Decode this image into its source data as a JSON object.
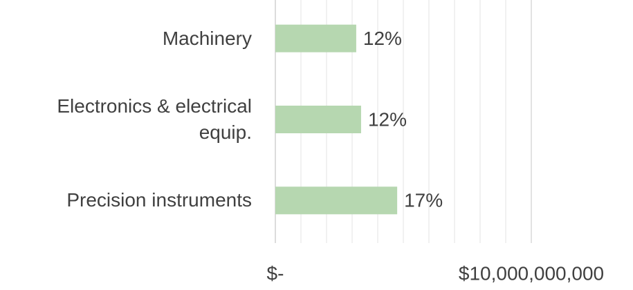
{
  "chart_data": {
    "type": "barh",
    "categories": [
      "Machinery",
      "Electronics & electrical equip.",
      "Precision instruments"
    ],
    "values": [
      3160000000,
      3350000000,
      4760000000
    ],
    "data_labels": [
      "12%",
      "12%",
      "17%"
    ],
    "color": "#b6d7b0",
    "xlim": [
      0,
      10000000000
    ],
    "xticks": [
      {
        "value": 0,
        "label": "$-"
      },
      {
        "value": 10000000000,
        "label": "$10,000,000,000"
      }
    ],
    "xminor_ticks": [
      1000000000,
      2000000000,
      3000000000,
      4000000000,
      5000000000,
      6000000000,
      7000000000,
      8000000000,
      9000000000
    ],
    "grid": true
  }
}
